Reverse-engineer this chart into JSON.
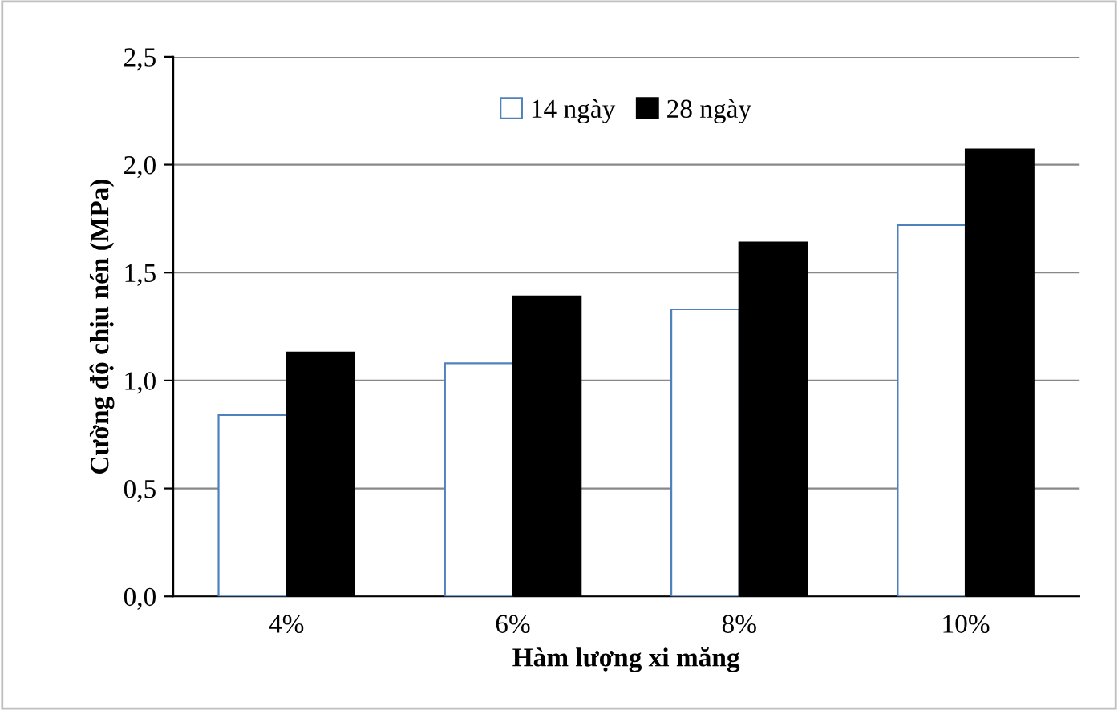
{
  "chart_data": {
    "type": "bar",
    "xlabel": "Hàm lượng xi măng",
    "ylabel": "Cường độ chịu nén (MPa)",
    "categories": [
      "4%",
      "6%",
      "8%",
      "10%"
    ],
    "series": [
      {
        "name": "14 ngày",
        "color": "#ffffff",
        "values": [
          0.84,
          1.08,
          1.33,
          1.72
        ]
      },
      {
        "name": "28 ngày",
        "color": "#000000",
        "values": [
          1.13,
          1.39,
          1.64,
          2.07
        ]
      }
    ],
    "ylim": [
      0,
      2.5
    ],
    "yticks": [
      {
        "value": 0,
        "label": "0,0"
      },
      {
        "value": 0.5,
        "label": "0,5"
      },
      {
        "value": 1.0,
        "label": "1,0"
      },
      {
        "value": 1.5,
        "label": "1,5"
      },
      {
        "value": 2.0,
        "label": "2,0"
      },
      {
        "value": 2.5,
        "label": "2,5"
      }
    ],
    "grid": "y",
    "legend": "top"
  }
}
